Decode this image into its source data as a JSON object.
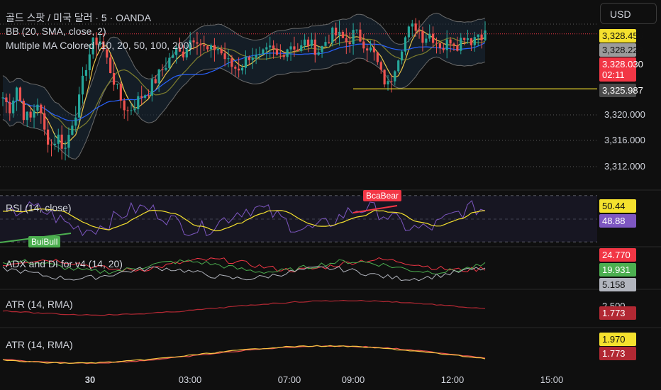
{
  "header": {
    "symbol": "골드 스팟 / 미국 달러 · 5 · OANDA",
    "currency": "USD"
  },
  "indicators": {
    "bb": "BB (20, SMA, close, 2)",
    "mma": "Multiple MA Colored (10, 20, 50, 100, 200)",
    "rsi": "RSI (14, close)",
    "adx": "ADX and DI for v4 (14, 20)",
    "atr1": "ATR (14, RMA)",
    "atr2": "ATR (14, RMA)"
  },
  "chart_data": {
    "type": "line",
    "xlabel": "",
    "ylabel": "",
    "x_ticks": [
      "30",
      "03:00",
      "07:00",
      "09:00",
      "12:00",
      "15:00"
    ],
    "price_ticks": [
      "3,320.000",
      "3,316.000",
      "3,312.000"
    ],
    "price_range": [
      3309.5,
      3330.2
    ],
    "price_labels": [
      {
        "value": "3,328.456",
        "bg": "#f5e12e",
        "fg": "#111111"
      },
      {
        "value": "3,328.228",
        "bg": "#9b9b9b",
        "fg": "#111111"
      },
      {
        "value": "3,328.030",
        "bg": "#f23645",
        "fg": "#ffffff"
      },
      {
        "value": "02:11",
        "bg": "#f23645",
        "fg": "#ffffff"
      },
      {
        "value": "3,325.987",
        "bg": "#4a4a4a",
        "fg": "#ffffff"
      }
    ],
    "horizontal_line": 3321.5,
    "price_close_series": [
      3320.5,
      3319.2,
      3321.8,
      3318.5,
      3317.9,
      3320.1,
      3316.5,
      3314.8,
      3315.9,
      3314.2,
      3317.5,
      3319.8,
      3324.1,
      3326.8,
      3327.5,
      3325.2,
      3322.8,
      3320.4,
      3318.8,
      3319.5,
      3320.6,
      3321.2,
      3322.4,
      3323.6,
      3324.8,
      3326.1,
      3325.5,
      3327.2,
      3327.9,
      3326.4,
      3325.8,
      3326.6,
      3325.4,
      3324.3,
      3323.9,
      3324.6,
      3325.8,
      3324.9,
      3325.6,
      3326.2,
      3325.1,
      3326.3,
      3326.9,
      3326.0,
      3327.2,
      3326.5,
      3326.0,
      3327.4,
      3328.1,
      3327.6,
      3327.0,
      3328.2,
      3327.4,
      3326.5,
      3325.4,
      3322.9,
      3321.8,
      3324.6,
      3326.9,
      3328.5,
      3329.0,
      3327.6,
      3328.1,
      3327.1,
      3326.4,
      3327.5,
      3326.8,
      3328.0,
      3327.3,
      3328.1,
      3328.03
    ],
    "rsi": {
      "values": [
        50.44,
        48.88
      ],
      "label_colors": [
        "#f5e12e",
        "#7e57c2"
      ],
      "levels": [
        70,
        50,
        30
      ]
    },
    "adx": {
      "values": [
        24.77,
        19.931,
        5.158
      ],
      "label_colors": [
        "#f23645",
        "#4caf50",
        "#b2b5be"
      ]
    },
    "atr1": {
      "values": [
        2.5,
        1.773
      ],
      "value_texts": [
        "2.500",
        "1.773"
      ],
      "label_colors": [
        "#0f0f0f",
        "#b22833"
      ]
    },
    "atr2": {
      "values": [
        1.97,
        1.773
      ],
      "value_texts": [
        "1.970",
        "1.773"
      ],
      "label_colors": [
        "#f5e12e",
        "#b22833"
      ]
    },
    "annotations": [
      {
        "text": "BcaBear",
        "type": "bear",
        "color": "#f23645"
      },
      {
        "text": "BuiBull",
        "type": "bull",
        "color": "#4caf50"
      }
    ]
  }
}
